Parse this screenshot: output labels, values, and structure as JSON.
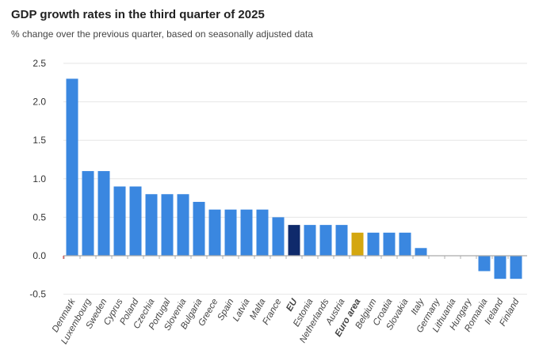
{
  "chart_data": {
    "type": "bar",
    "title": "GDP growth rates in the third quarter of 2025",
    "subtitle": "% change over the previous quarter, based on seasonally adjusted data",
    "categories": [
      "Denmark",
      "Luxembourg",
      "Sweden",
      "Cyprus",
      "Poland",
      "Czechia",
      "Portugal",
      "Slovenia",
      "Bulgaria",
      "Greece",
      "Spain",
      "Latvia",
      "Malta",
      "France",
      "EU",
      "Estonia",
      "Netherlands",
      "Austria",
      "Euro area",
      "Belgium",
      "Croatia",
      "Slovakia",
      "Italy",
      "Germany",
      "Lithuania",
      "Hungary",
      "Romania",
      "Ireland",
      "Finland"
    ],
    "values": [
      2.3,
      1.1,
      1.1,
      0.9,
      0.9,
      0.8,
      0.8,
      0.8,
      0.7,
      0.6,
      0.6,
      0.6,
      0.6,
      0.5,
      0.4,
      0.4,
      0.4,
      0.4,
      0.3,
      0.3,
      0.3,
      0.3,
      0.1,
      0.0,
      0.0,
      0.0,
      -0.2,
      -0.3,
      -0.3
    ],
    "highlighted": {
      "EU": "#0f2a6b",
      "Euro area": "#d4a70f"
    },
    "bold_labels": [
      "EU",
      "Euro area"
    ],
    "bar_color": "#3a87e0",
    "yticks": [
      "2.5",
      "2.0",
      "1.5",
      "1.0",
      "0.5",
      "0.0",
      "-0.5"
    ],
    "ylim": [
      -0.5,
      2.5
    ],
    "grid": true,
    "xlabel": "",
    "ylabel": ""
  }
}
